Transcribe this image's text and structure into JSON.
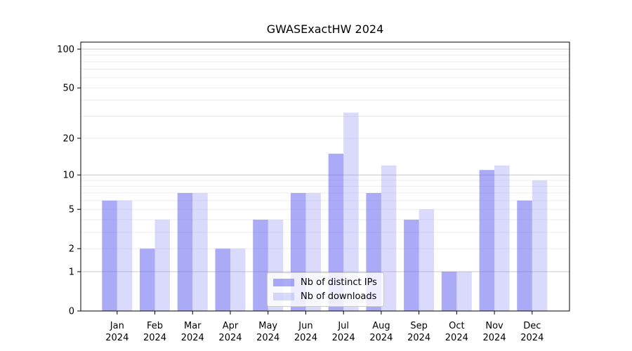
{
  "chart_data": {
    "type": "bar",
    "title": "GWASExactHW 2024",
    "categories": [
      "Jan",
      "Feb",
      "Mar",
      "Apr",
      "May",
      "Jun",
      "Jul",
      "Aug",
      "Sep",
      "Oct",
      "Nov",
      "Dec"
    ],
    "x_tick_year": "2024",
    "series": [
      {
        "name": "Nb of distinct IPs",
        "key": "distinct-ips",
        "color": "rgba(100,100,240,0.55)",
        "values": [
          6,
          2,
          7,
          2,
          4,
          7,
          15,
          7,
          4,
          1,
          11,
          6
        ]
      },
      {
        "name": "Nb of downloads",
        "key": "downloads",
        "color": "rgba(150,150,245,0.35)",
        "values": [
          6,
          4,
          7,
          2,
          4,
          7,
          32,
          12,
          5,
          1,
          12,
          9
        ]
      }
    ],
    "xlabel": "",
    "ylabel": "",
    "y_axis": {
      "scale": "log10(value+1)",
      "ticks": [
        0,
        1,
        2,
        5,
        10,
        20,
        50,
        100
      ],
      "major_gridlines": [
        1,
        10,
        100
      ],
      "minor_gridlines": [
        2,
        3,
        4,
        5,
        6,
        7,
        8,
        9,
        20,
        30,
        40,
        50,
        60,
        70,
        80,
        90
      ]
    },
    "legend": {
      "position": "lower center",
      "entries": [
        "Nb of distinct IPs",
        "Nb of downloads"
      ]
    },
    "grid": true
  },
  "style": {
    "background": "#ffffff",
    "axis_color": "#000000",
    "text_color": "#000000",
    "minor_grid_color": "#ededed",
    "major_grid_color": "#c8c8c8",
    "legend_border_color": "#cccccc",
    "legend_bg": "rgba(255,255,255,0.8)"
  }
}
